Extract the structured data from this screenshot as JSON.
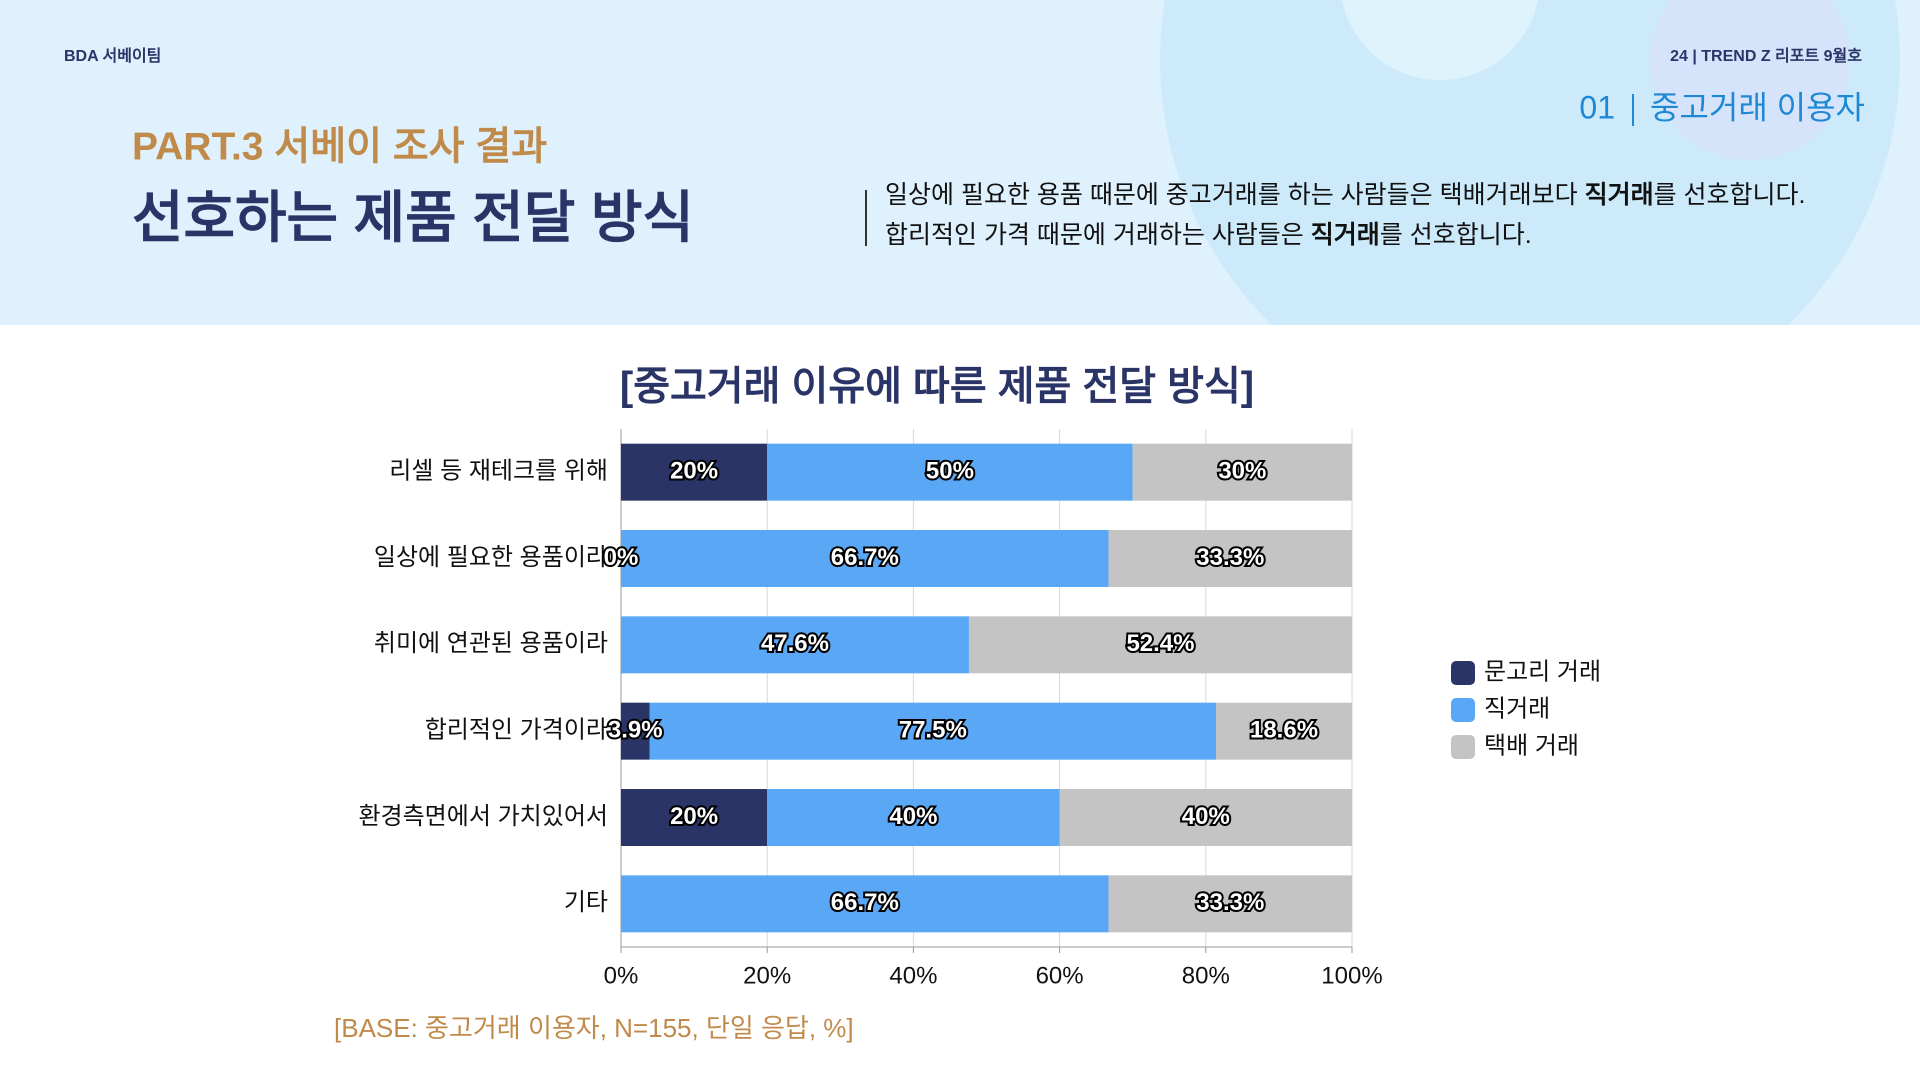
{
  "header": {
    "team": "BDA 서베이팀",
    "issue": "24 | TREND Z 리포트 9월호",
    "section_no": "01",
    "section": "중고거래 이용자",
    "part": "PART.3 서베이 조사 결과",
    "title": "선호하는 제품 전달 방식",
    "description": [
      [
        "일상에 필요한 용품 때문에 중고거래를 하는 사람들은 택배거래보다 ",
        "직거래",
        "를 선호합니다."
      ],
      [
        "합리적인 가격 때문에 거래하는 사람들은 ",
        "직거래",
        "를 선호합니다."
      ]
    ]
  },
  "chart_data": {
    "type": "stacked_barh",
    "title": "[중고거래 이유에 따른 제품 전달 방식]",
    "categories": [
      "리셀 등 재테크를 위해",
      "일상에 필요한 용품이라",
      "취미에 연관된 용품이라",
      "합리적인 가격이라",
      "환경측면에서 가치있어서",
      "기타"
    ],
    "series": [
      {
        "name": "문고리 거래",
        "color": "#2a3466",
        "values": [
          20,
          0,
          0,
          3.9,
          20,
          0
        ],
        "value_labels": [
          "20%",
          "0%",
          null,
          "3.9%",
          "20%",
          null
        ]
      },
      {
        "name": "직거래",
        "color": "#5aa7f5",
        "values": [
          50,
          66.7,
          47.6,
          77.5,
          40,
          66.7
        ],
        "value_labels": [
          "50%",
          "66.7%",
          "47.6%",
          "77.5%",
          "40%",
          "66.7%"
        ]
      },
      {
        "name": "택배 거래",
        "color": "#c4c4c4",
        "values": [
          30,
          33.3,
          52.4,
          18.6,
          40,
          33.3
        ],
        "value_labels": [
          "30%",
          "33.3%",
          "52.4%",
          "18.6%",
          "40%",
          "33.3%"
        ]
      }
    ],
    "xlim": [
      0,
      100
    ],
    "xticks": [
      {
        "value": 0,
        "label": "0%"
      },
      {
        "value": 20,
        "label": "20%"
      },
      {
        "value": 40,
        "label": "40%"
      },
      {
        "value": 60,
        "label": "60%"
      },
      {
        "value": 80,
        "label": "80%"
      },
      {
        "value": 100,
        "label": "100%"
      }
    ],
    "grid": true,
    "legend": "right",
    "note": "[BASE: 중고거래 이용자, N=155, 단일 응답, %]"
  }
}
